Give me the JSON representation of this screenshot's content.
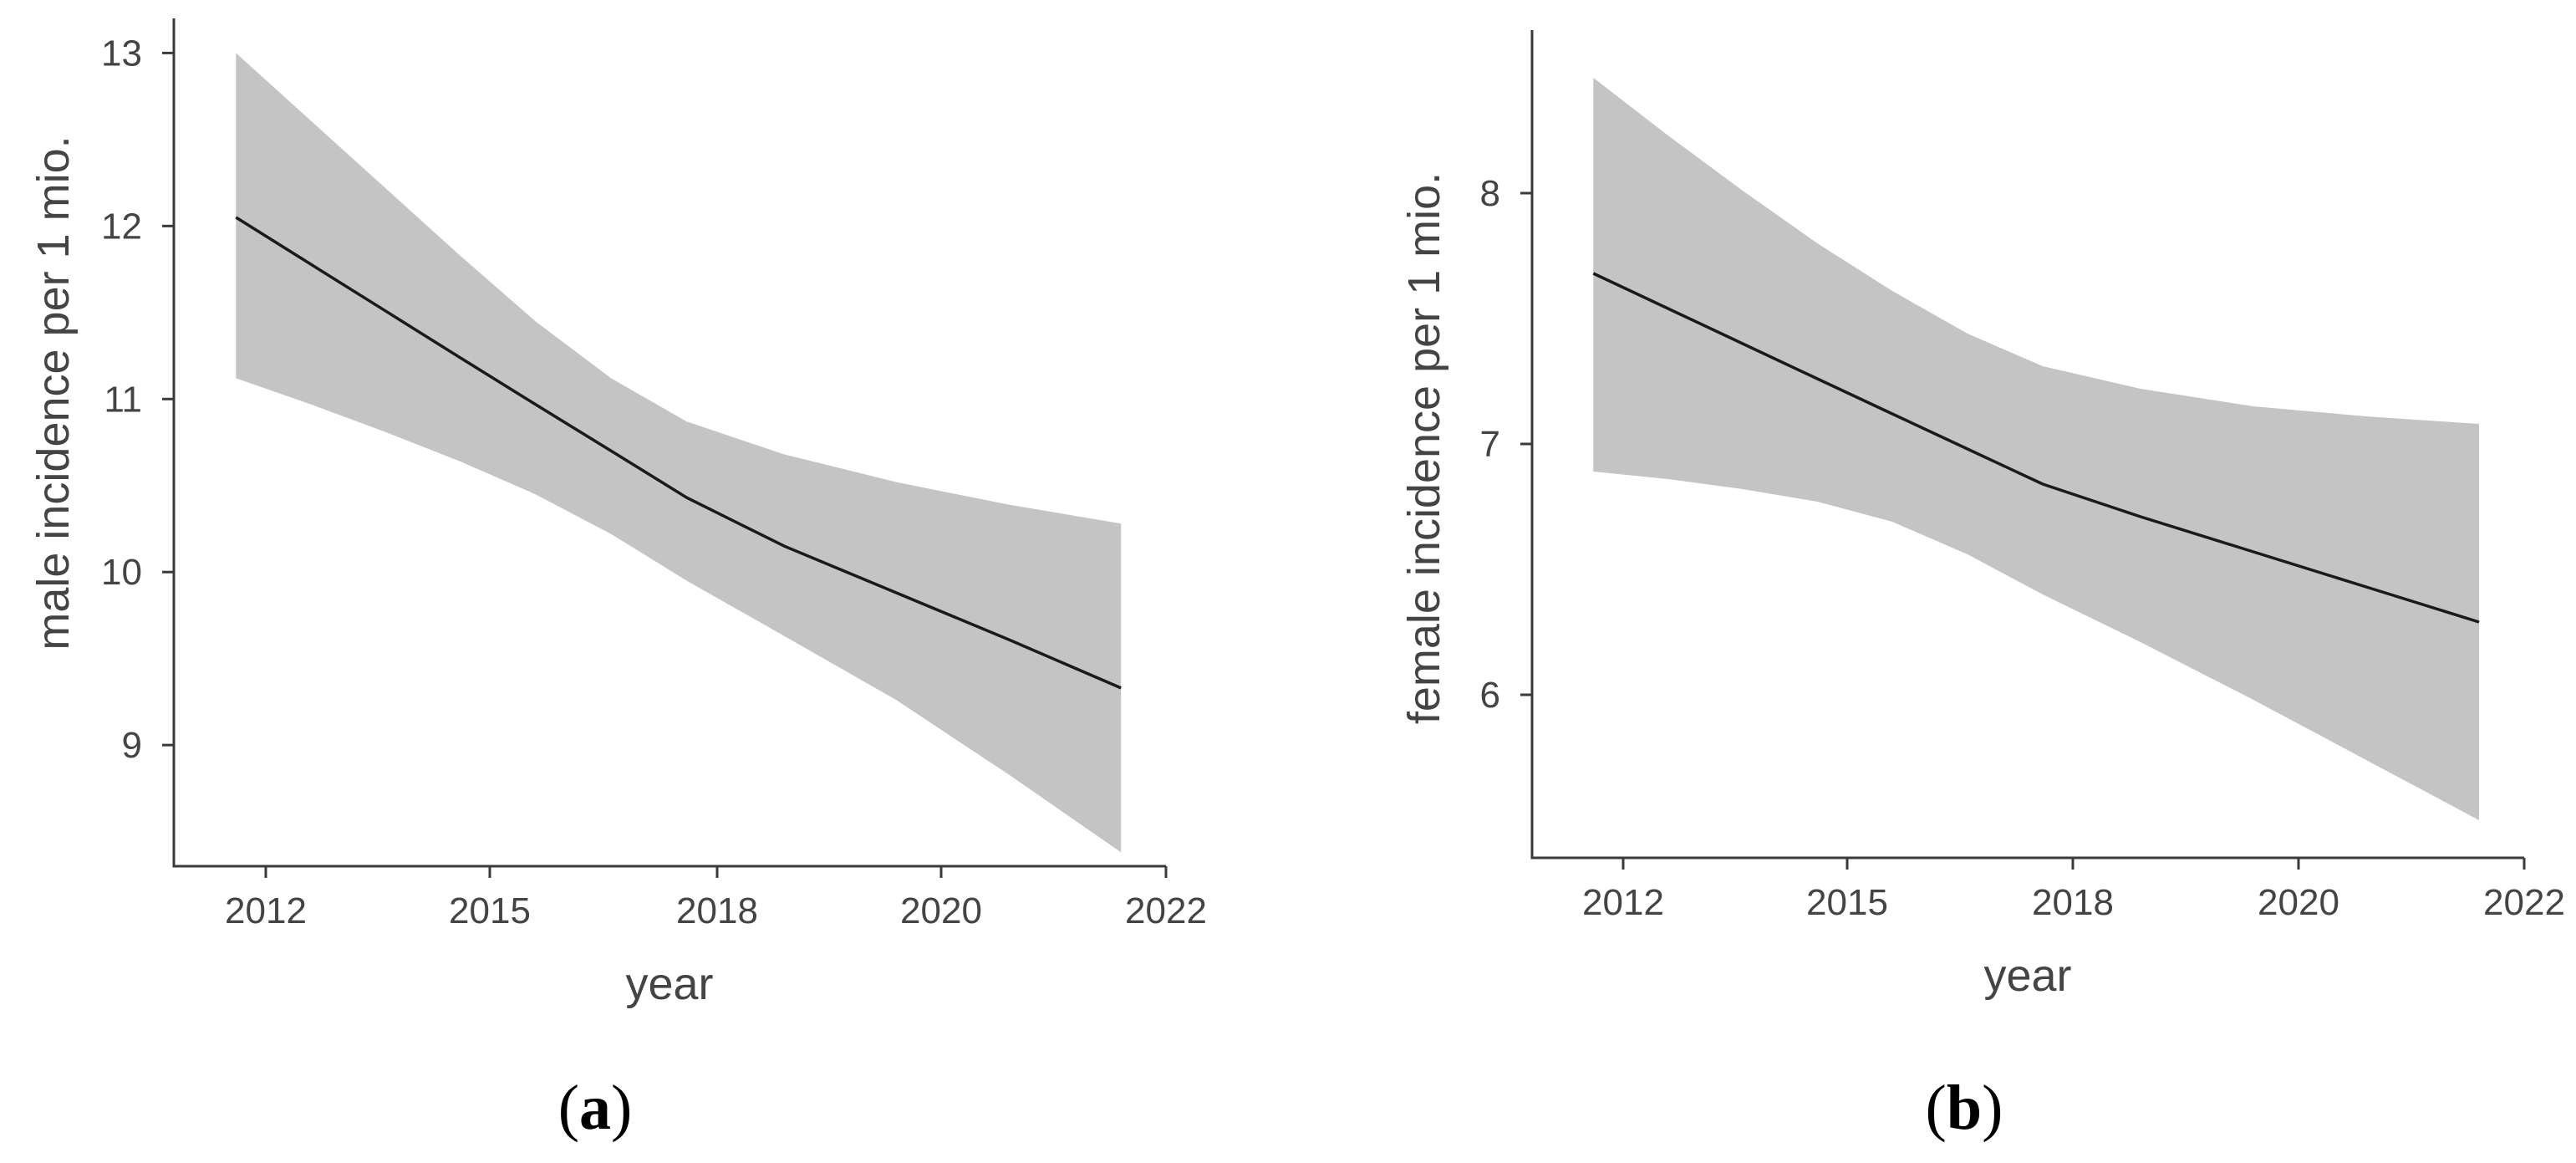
{
  "chart_data": [
    {
      "type": "line",
      "panel_label": {
        "open": "(",
        "letter": "a",
        "close": ")"
      },
      "xlabel": "year",
      "ylabel": "male incidence per 1 mio.",
      "x_ticks": [
        "2012",
        "2015",
        "2018",
        "2020",
        "2022"
      ],
      "y_ticks": [
        9,
        10,
        11,
        12,
        13
      ],
      "ylim": [
        8.3,
        13.2
      ],
      "x_range": [
        2011.6,
        2021.6
      ],
      "band_color": "#c4c4c4",
      "line_color": "#1a1a1a",
      "series": [
        {
          "fit": [
            {
              "x": 2011.6,
              "y": 12.05
            },
            {
              "x": 2012.6,
              "y": 11.78
            },
            {
              "x": 2013.6,
              "y": 11.51
            },
            {
              "x": 2014.6,
              "y": 11.24
            },
            {
              "x": 2015.6,
              "y": 10.97
            },
            {
              "x": 2016.6,
              "y": 10.7
            },
            {
              "x": 2017.6,
              "y": 10.43
            },
            {
              "x": 2018.6,
              "y": 10.15
            },
            {
              "x": 2019.6,
              "y": 9.88
            },
            {
              "x": 2020.6,
              "y": 9.61
            },
            {
              "x": 2021.6,
              "y": 9.33
            }
          ],
          "upper": [
            {
              "x": 2011.6,
              "y": 13.0
            },
            {
              "x": 2012.6,
              "y": 12.61
            },
            {
              "x": 2013.6,
              "y": 12.22
            },
            {
              "x": 2014.6,
              "y": 11.83
            },
            {
              "x": 2015.6,
              "y": 11.45
            },
            {
              "x": 2016.6,
              "y": 11.12
            },
            {
              "x": 2017.6,
              "y": 10.87
            },
            {
              "x": 2018.6,
              "y": 10.68
            },
            {
              "x": 2019.6,
              "y": 10.52
            },
            {
              "x": 2020.6,
              "y": 10.39
            },
            {
              "x": 2021.6,
              "y": 10.28
            }
          ],
          "lower": [
            {
              "x": 2011.6,
              "y": 11.12
            },
            {
              "x": 2012.6,
              "y": 10.97
            },
            {
              "x": 2013.6,
              "y": 10.81
            },
            {
              "x": 2014.6,
              "y": 10.64
            },
            {
              "x": 2015.6,
              "y": 10.45
            },
            {
              "x": 2016.6,
              "y": 10.22
            },
            {
              "x": 2017.6,
              "y": 9.95
            },
            {
              "x": 2018.6,
              "y": 9.63
            },
            {
              "x": 2019.6,
              "y": 9.26
            },
            {
              "x": 2020.6,
              "y": 8.83
            },
            {
              "x": 2021.6,
              "y": 8.38
            }
          ]
        }
      ],
      "grid": false,
      "legend": "none"
    },
    {
      "type": "line",
      "panel_label": {
        "open": "(",
        "letter": "b",
        "close": ")"
      },
      "xlabel": "year",
      "ylabel": "female incidence per 1 mio.",
      "x_ticks": [
        "2012",
        "2015",
        "2018",
        "2020",
        "2022"
      ],
      "y_ticks": [
        6,
        7,
        8
      ],
      "ylim": [
        5.35,
        8.65
      ],
      "x_range": [
        2011.6,
        2021.6
      ],
      "band_color": "#c4c4c4",
      "line_color": "#1a1a1a",
      "series": [
        {
          "fit": [
            {
              "x": 2011.6,
              "y": 7.68
            },
            {
              "x": 2012.6,
              "y": 7.54
            },
            {
              "x": 2013.6,
              "y": 7.4
            },
            {
              "x": 2014.6,
              "y": 7.26
            },
            {
              "x": 2015.6,
              "y": 7.12
            },
            {
              "x": 2016.6,
              "y": 6.98
            },
            {
              "x": 2017.6,
              "y": 6.84
            },
            {
              "x": 2018.6,
              "y": 6.71
            },
            {
              "x": 2019.6,
              "y": 6.57
            },
            {
              "x": 2020.6,
              "y": 6.43
            },
            {
              "x": 2021.6,
              "y": 6.29
            }
          ],
          "upper": [
            {
              "x": 2011.6,
              "y": 8.46
            },
            {
              "x": 2012.6,
              "y": 8.23
            },
            {
              "x": 2013.6,
              "y": 8.01
            },
            {
              "x": 2014.6,
              "y": 7.8
            },
            {
              "x": 2015.6,
              "y": 7.61
            },
            {
              "x": 2016.6,
              "y": 7.44
            },
            {
              "x": 2017.6,
              "y": 7.31
            },
            {
              "x": 2018.6,
              "y": 7.22
            },
            {
              "x": 2019.6,
              "y": 7.15
            },
            {
              "x": 2020.6,
              "y": 7.11
            },
            {
              "x": 2021.6,
              "y": 7.08
            }
          ],
          "lower": [
            {
              "x": 2011.6,
              "y": 6.89
            },
            {
              "x": 2012.6,
              "y": 6.86
            },
            {
              "x": 2013.6,
              "y": 6.82
            },
            {
              "x": 2014.6,
              "y": 6.77
            },
            {
              "x": 2015.6,
              "y": 6.69
            },
            {
              "x": 2016.6,
              "y": 6.56
            },
            {
              "x": 2017.6,
              "y": 6.4
            },
            {
              "x": 2018.6,
              "y": 6.21
            },
            {
              "x": 2019.6,
              "y": 5.98
            },
            {
              "x": 2020.6,
              "y": 5.74
            },
            {
              "x": 2021.6,
              "y": 5.5
            }
          ]
        }
      ],
      "grid": false,
      "legend": "none"
    }
  ]
}
